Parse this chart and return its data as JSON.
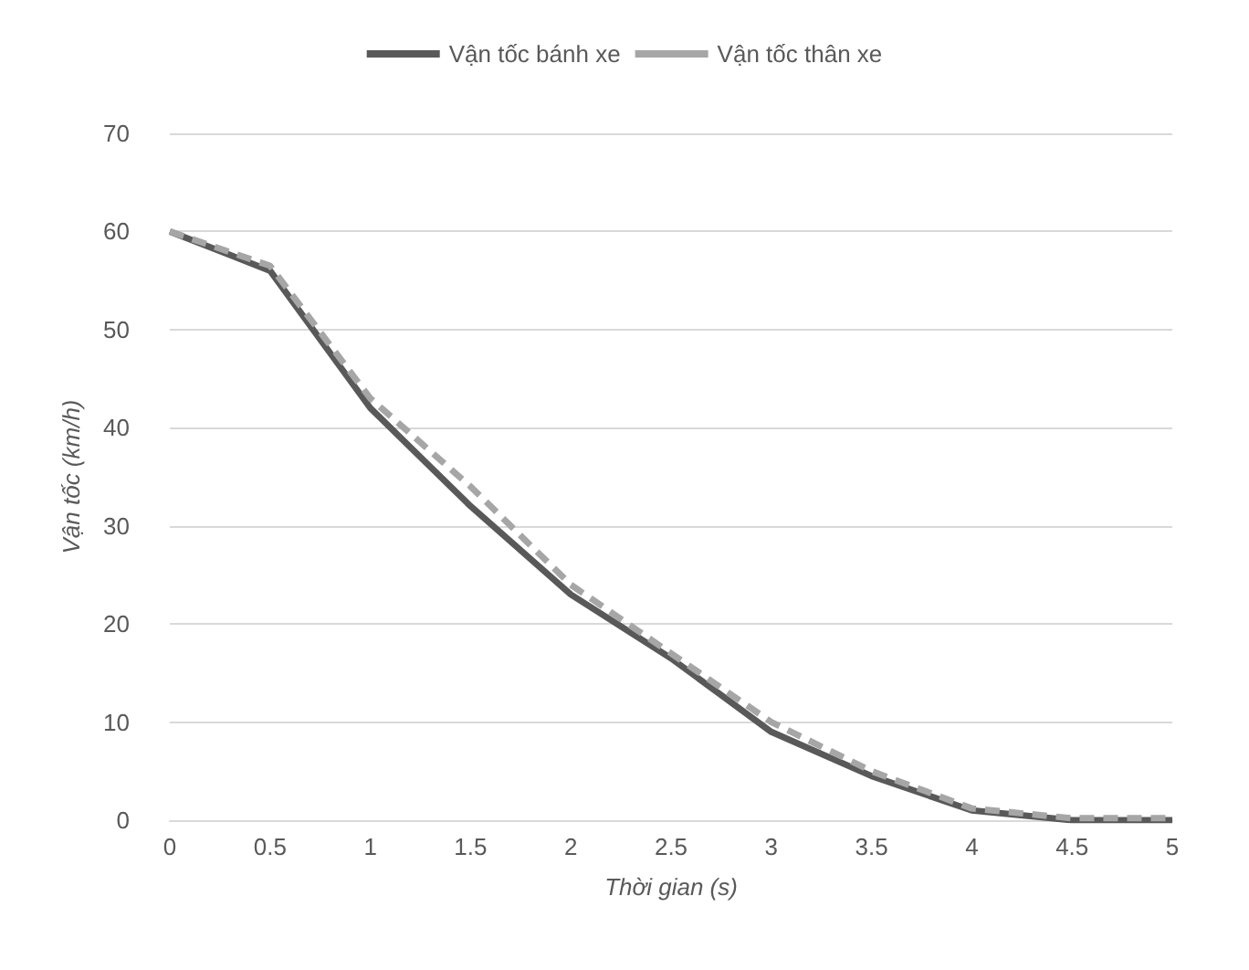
{
  "chart_data": {
    "type": "line",
    "xlabel": "Thời gian (s)",
    "ylabel": "Vận tốc (km/h)",
    "x": [
      0,
      0.5,
      1,
      1.5,
      2,
      2.5,
      3,
      3.5,
      4,
      4.5,
      5
    ],
    "xlim": [
      0,
      5
    ],
    "xticks": [
      0,
      0.5,
      1,
      1.5,
      2,
      2.5,
      3,
      3.5,
      4,
      4.5,
      5
    ],
    "ylim": [
      0,
      70
    ],
    "yticks": [
      0,
      10,
      20,
      30,
      40,
      50,
      60,
      70
    ],
    "series": [
      {
        "name": "Vận tốc bánh xe",
        "color": "#595959",
        "line_style": "solid",
        "values": [
          60,
          56,
          42,
          32,
          23,
          16.5,
          9,
          4.5,
          1,
          0,
          0
        ]
      },
      {
        "name": "Vận tốc thân xe",
        "color": "#a6a6a6",
        "line_style": "dashed",
        "values": [
          60,
          56.5,
          43,
          34,
          24,
          17,
          10,
          5,
          1.2,
          0.2,
          0.2
        ]
      }
    ],
    "grid": "y",
    "legend": "top",
    "marker": "none"
  }
}
